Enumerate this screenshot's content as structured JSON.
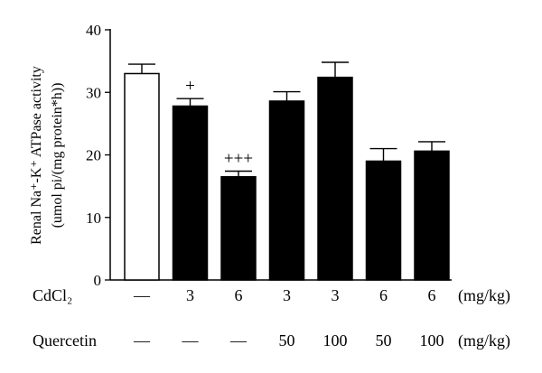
{
  "chart_data": {
    "type": "bar",
    "ylabel_line1": "Renal Na⁺-K⁺ ATPase activity",
    "ylabel_line2": "(umol pi/(mg protein*h))",
    "ylim": [
      0,
      40
    ],
    "yticks": [
      0,
      10,
      20,
      30,
      40
    ],
    "bars": [
      {
        "value": 33.0,
        "error": 1.5,
        "fill": "white",
        "significance": ""
      },
      {
        "value": 27.8,
        "error": 1.2,
        "fill": "black",
        "significance": "+"
      },
      {
        "value": 16.5,
        "error": 0.9,
        "fill": "black",
        "significance": "+++"
      },
      {
        "value": 28.6,
        "error": 1.5,
        "fill": "black",
        "significance": ""
      },
      {
        "value": 32.4,
        "error": 2.4,
        "fill": "black",
        "significance": ""
      },
      {
        "value": 19.0,
        "error": 2.0,
        "fill": "black",
        "significance": ""
      },
      {
        "value": 20.6,
        "error": 1.5,
        "fill": "black",
        "significance": ""
      }
    ],
    "rows": [
      {
        "label": "CdCl₂",
        "values": [
          "—",
          "3",
          "6",
          "3",
          "3",
          "6",
          "6"
        ],
        "unit": "(mg/kg)"
      },
      {
        "label": "Quercetin",
        "values": [
          "—",
          "—",
          "—",
          "50",
          "100",
          "50",
          "100"
        ],
        "unit": "(mg/kg)"
      }
    ],
    "colors": {
      "axis": "#000000",
      "bar_dark": "#000000",
      "bar_light": "#ffffff"
    }
  }
}
